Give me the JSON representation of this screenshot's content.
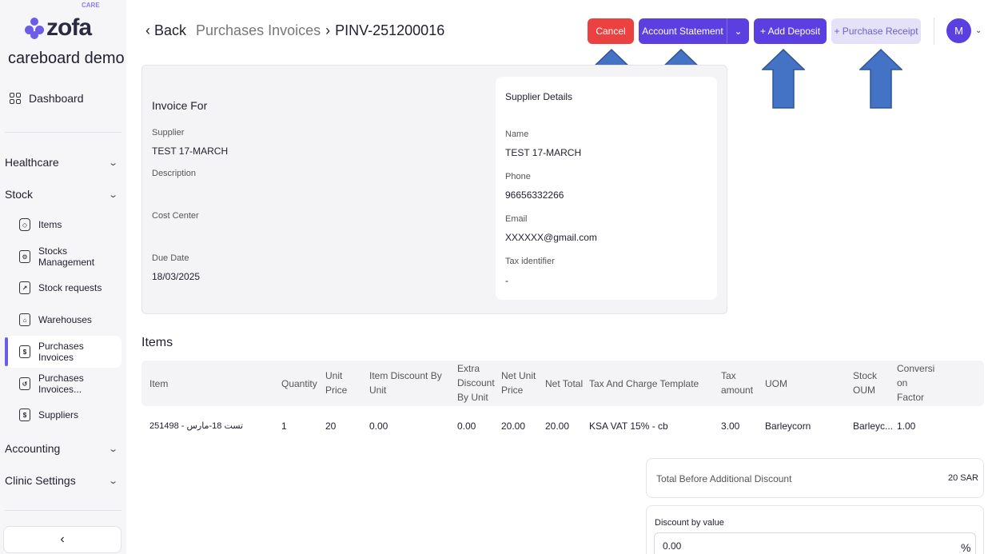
{
  "brand": {
    "logo_text": "zofa",
    "logo_badge": "CARE",
    "org_name": "careboard demo"
  },
  "sidebar": {
    "dashboard": "Dashboard",
    "sections": [
      {
        "label": "Healthcare"
      },
      {
        "label": "Stock"
      },
      {
        "label": "Accounting"
      },
      {
        "label": "Clinic Settings"
      }
    ],
    "stock_items": [
      {
        "label": "Items"
      },
      {
        "label": "Stocks Management"
      },
      {
        "label": "Stock requests"
      },
      {
        "label": "Warehouses"
      },
      {
        "label": "Purchases Invoices"
      },
      {
        "label": "Purchases Invoices..."
      },
      {
        "label": "Suppliers"
      }
    ],
    "collapse_icon": "chevron-left-icon"
  },
  "header": {
    "back_label": "Back",
    "breadcrumb": "Purchases Invoices",
    "current": "PINV-251200016",
    "cancel_label": "Cancel",
    "account_statement_label": "Account Statement",
    "add_deposit_label": "+ Add Deposit",
    "purchase_receipt_label": "+ Purchase Receipt",
    "avatar_initial": "M"
  },
  "invoice": {
    "title": "Invoice For",
    "supplier_label": "Supplier",
    "supplier_value": "TEST 17-MARCH",
    "description_label": "Description",
    "description_value": "",
    "cost_center_label": "Cost Center",
    "cost_center_value": "",
    "due_date_label": "Due Date",
    "due_date_value": "18/03/2025"
  },
  "supplier_details": {
    "title": "Supplier Details",
    "name_label": "Name",
    "name_value": "TEST 17-MARCH",
    "phone_label": "Phone",
    "phone_value": "96656332266",
    "email_label": "Email",
    "email_value": "XXXXXX@gmail.com",
    "tax_label": "Tax identifier",
    "tax_value": "-"
  },
  "items": {
    "title": "Items",
    "columns": {
      "item": "Item",
      "quantity": "Quantity",
      "unit_price": [
        "Unit",
        "Price"
      ],
      "item_discount": [
        "Item Discount By",
        "Unit"
      ],
      "extra_discount": [
        "Extra",
        "Discount",
        "By Unit"
      ],
      "net_unit_price": [
        "Net Unit",
        "Price"
      ],
      "net_total": "Net Total",
      "tax_template": "Tax And Charge Template",
      "tax_amount": [
        "Tax",
        "amount"
      ],
      "uom": "UOM",
      "stock_oum": [
        "Stock",
        "OUM"
      ],
      "conversion": [
        "Conversi",
        "on",
        "Factor"
      ]
    },
    "row": {
      "item": "251498 - تست 18-مارس",
      "quantity": "1",
      "unit_price": "20",
      "item_discount": "0.00",
      "extra_discount": "0.00",
      "net_unit_price": "20.00",
      "net_total": "20.00",
      "tax_template": "KSA VAT 15% - cb",
      "tax_amount": "3.00",
      "uom": "Barleycorn",
      "stock_oum": "Barleyc...",
      "conversion": "1.00"
    }
  },
  "totals": {
    "before_discount_label": "Total Before Additional Discount",
    "before_discount_value": "20 SAR",
    "discount_label": "Discount by value",
    "discount_value": "0.00",
    "discount_unit": "%"
  },
  "colors": {
    "primary": "#5b3fe0",
    "danger": "#ec4141",
    "arrow": "#4472c4"
  }
}
